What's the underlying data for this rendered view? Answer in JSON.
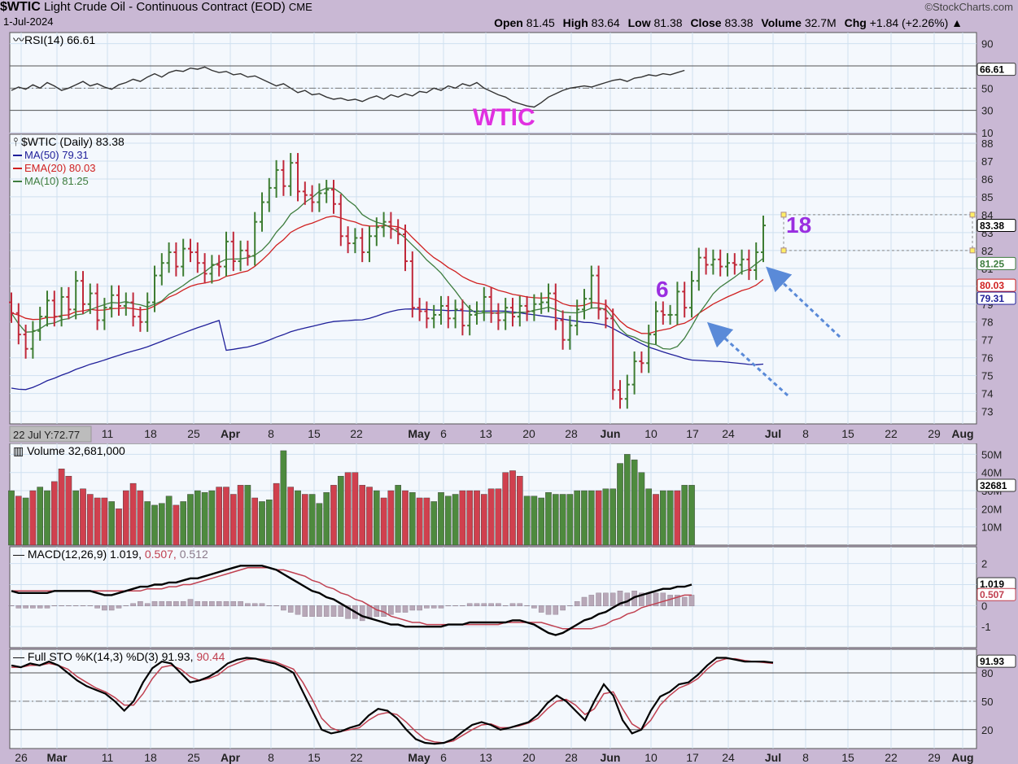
{
  "header": {
    "symbol": "$WTIC",
    "name": "Light Crude Oil - Continuous Contract (EOD)",
    "exchange": "CME",
    "date": "1-Jul-2024",
    "brand": "©StockCharts.com",
    "ohlc_line": [
      {
        "label": "Open",
        "value": "81.45"
      },
      {
        "label": "High",
        "value": "83.64"
      },
      {
        "label": "Low",
        "value": "81.38"
      },
      {
        "label": "Close",
        "value": "83.38"
      },
      {
        "label": "Volume",
        "value": "32.7M"
      },
      {
        "label": "Chg",
        "value": "+1.84 (+2.26%) ▲"
      }
    ]
  },
  "x_axis": {
    "labels": [
      "26",
      "Mar",
      "11",
      "18",
      "25",
      "Apr",
      "8",
      "15",
      "22",
      "May",
      "6",
      "13",
      "20",
      "28",
      "Jun",
      "10",
      "17",
      "24",
      "Jul",
      "8",
      "15",
      "22",
      "29",
      "Aug"
    ],
    "bold": [
      "Mar",
      "Apr",
      "May",
      "Jun",
      "Jul",
      "Aug"
    ],
    "cursor_label": "22 Jul Y:72.77"
  },
  "colors": {
    "up": "#3e7d32",
    "down": "#c0283a",
    "ma50": "#20209a",
    "ema20": "#d02020",
    "ma10": "#3e7d3e",
    "panel_bg": "#f4f8fd",
    "grid": "#cfe0f0",
    "annotation": "#9a2ee0",
    "wtic_label": "#e030e0",
    "arrow": "#5a8ad8"
  },
  "chart_data": [
    {
      "type": "line",
      "panel": "rsi",
      "title": "RSI(14) 66.61",
      "ylim": [
        10,
        100
      ],
      "ticks": [
        90,
        70,
        50,
        30,
        10
      ],
      "levels": [
        70,
        30
      ],
      "midline": 50,
      "last_value": "66.61",
      "values": [
        48,
        51,
        49,
        53,
        50,
        55,
        52,
        48,
        50,
        53,
        56,
        52,
        54,
        51,
        49,
        53,
        55,
        58,
        56,
        60,
        63,
        60,
        64,
        66,
        65,
        68,
        67,
        69,
        66,
        64,
        65,
        62,
        63,
        60,
        61,
        58,
        55,
        52,
        54,
        50,
        46,
        48,
        44,
        45,
        42,
        40,
        41,
        39,
        40,
        38,
        41,
        43,
        40,
        44,
        42,
        45,
        43,
        47,
        46,
        50,
        48,
        52,
        50,
        54,
        52,
        55,
        50,
        47,
        44,
        42,
        38,
        36,
        34,
        33,
        37,
        42,
        45,
        48,
        50,
        51,
        52,
        51,
        53,
        55,
        57,
        58,
        56,
        59,
        60,
        62,
        61,
        63,
        62,
        64,
        66
      ]
    },
    {
      "type": "ohlc",
      "panel": "price",
      "title": "$WTIC (Daily) 83.38",
      "ylim": [
        72.3,
        88.5
      ],
      "ticks": [
        88,
        87,
        86,
        85,
        84,
        83,
        82,
        81,
        80,
        79,
        78,
        77,
        76,
        75,
        74,
        73
      ],
      "close": [
        78.5,
        77.3,
        76.5,
        77.5,
        78.3,
        79.2,
        78.3,
        79.4,
        78.7,
        80.3,
        79.0,
        79.6,
        78.1,
        78.8,
        79.5,
        78.9,
        79.1,
        78.3,
        78.0,
        79.1,
        80.6,
        81.3,
        81.9,
        81.1,
        82.1,
        81.9,
        81.3,
        80.7,
        81.2,
        81.1,
        82.5,
        81.4,
        82.0,
        81.7,
        83.6,
        84.7,
        85.5,
        86.5,
        85.6,
        86.9,
        85.3,
        85.1,
        84.7,
        85.2,
        85.4,
        84.6,
        82.8,
        82.4,
        82.7,
        81.9,
        82.8,
        83.3,
        83.6,
        83.2,
        82.9,
        81.4,
        78.8,
        78.6,
        78.2,
        78.4,
        78.9,
        78.2,
        78.7,
        77.8,
        78.4,
        78.6,
        79.4,
        78.5,
        78.1,
        78.8,
        78.3,
        78.9,
        78.6,
        79.0,
        79.1,
        79.6,
        78.1,
        77.0,
        77.8,
        78.7,
        79.3,
        80.6,
        78.7,
        78.2,
        74.2,
        73.7,
        74.5,
        75.8,
        75.7,
        77.3,
        78.6,
        78.4,
        78.4,
        79.7,
        78.8,
        80.3,
        81.6,
        81.2,
        81.5,
        81.1,
        81.3,
        81.2,
        81.5,
        80.9,
        81.9,
        83.4
      ]
    },
    {
      "type": "bar",
      "panel": "volume",
      "title": "Volume 32,681,000",
      "ylim": [
        0,
        56
      ],
      "ticks": [
        50,
        40,
        30,
        20,
        10
      ],
      "last_value": "32681",
      "values": [
        30,
        27,
        26,
        30,
        32,
        30,
        35,
        42,
        38,
        30,
        31,
        28,
        26,
        26,
        24,
        20,
        30,
        34,
        30,
        24,
        22,
        23,
        27,
        22,
        24,
        28,
        30,
        29,
        30,
        32,
        32,
        28,
        33,
        33,
        26,
        24,
        25,
        34,
        52,
        32,
        30,
        28,
        28,
        23,
        29,
        33,
        38,
        40,
        40,
        33,
        32,
        30,
        26,
        30,
        33,
        30,
        29,
        26,
        26,
        24,
        29,
        27,
        28,
        30,
        30,
        30,
        28,
        31,
        31,
        40,
        41,
        38,
        27,
        27,
        26,
        29,
        28,
        28,
        28,
        30,
        30,
        30,
        30,
        31,
        31,
        45,
        50,
        47,
        40,
        31,
        28,
        30,
        30,
        30,
        33,
        33
      ],
      "up": [
        1,
        0,
        1,
        0,
        1,
        1,
        0,
        0,
        0,
        1,
        0,
        0,
        0,
        0,
        1,
        0,
        0,
        0,
        0,
        1,
        1,
        1,
        1,
        0,
        1,
        1,
        1,
        1,
        1,
        0,
        0,
        0,
        0,
        1,
        0,
        1,
        1,
        0,
        1,
        0,
        1,
        0,
        1,
        1,
        1,
        0,
        1,
        0,
        0,
        0,
        0,
        1,
        0,
        0,
        1,
        0,
        1,
        0,
        0,
        1,
        1,
        1,
        1,
        0,
        0,
        0,
        0,
        0,
        0,
        0,
        0,
        0,
        1,
        1,
        1,
        1,
        1,
        1,
        1,
        1,
        1,
        1,
        0,
        1,
        1,
        1,
        1,
        1,
        1,
        1,
        0,
        1,
        1,
        0,
        1,
        1
      ]
    },
    {
      "type": "line",
      "panel": "macd",
      "title": "MACD(12,26,9)",
      "macd_value": "1.019",
      "signal_value": "0.507",
      "hist_value": "0.512",
      "ylim": [
        -2.0,
        2.8
      ],
      "ticks": [
        2,
        1,
        0,
        -1
      ],
      "macd": [
        0.7,
        0.6,
        0.6,
        0.6,
        0.6,
        0.6,
        0.7,
        0.7,
        0.7,
        0.7,
        0.7,
        0.7,
        0.6,
        0.5,
        0.5,
        0.6,
        0.7,
        0.8,
        0.9,
        0.9,
        1.0,
        1.0,
        1.1,
        1.1,
        1.2,
        1.3,
        1.3,
        1.4,
        1.5,
        1.6,
        1.7,
        1.8,
        1.9,
        1.9,
        1.9,
        1.9,
        1.8,
        1.7,
        1.5,
        1.3,
        1.1,
        0.9,
        0.7,
        0.6,
        0.4,
        0.3,
        0.1,
        -0.1,
        -0.3,
        -0.5,
        -0.6,
        -0.7,
        -0.8,
        -0.9,
        -0.9,
        -1.0,
        -1.0,
        -1.0,
        -1.0,
        -1.0,
        -1.0,
        -0.9,
        -0.9,
        -0.9,
        -0.8,
        -0.8,
        -0.8,
        -0.8,
        -0.8,
        -0.8,
        -0.7,
        -0.7,
        -0.8,
        -0.9,
        -1.1,
        -1.3,
        -1.4,
        -1.3,
        -1.1,
        -0.9,
        -0.7,
        -0.6,
        -0.4,
        -0.3,
        -0.1,
        0.1,
        0.2,
        0.4,
        0.5,
        0.6,
        0.7,
        0.8,
        0.8,
        0.9,
        0.9,
        1.0
      ],
      "signal": [
        0.7,
        0.7,
        0.7,
        0.7,
        0.7,
        0.7,
        0.7,
        0.7,
        0.7,
        0.7,
        0.7,
        0.7,
        0.7,
        0.7,
        0.7,
        0.7,
        0.7,
        0.7,
        0.7,
        0.8,
        0.8,
        0.8,
        0.9,
        0.9,
        1.0,
        1.0,
        1.1,
        1.2,
        1.3,
        1.4,
        1.5,
        1.6,
        1.7,
        1.8,
        1.8,
        1.8,
        1.8,
        1.7,
        1.7,
        1.6,
        1.5,
        1.4,
        1.2,
        1.1,
        0.9,
        0.8,
        0.6,
        0.5,
        0.3,
        0.2,
        0.0,
        -0.2,
        -0.3,
        -0.5,
        -0.6,
        -0.7,
        -0.8,
        -0.8,
        -0.9,
        -0.9,
        -0.9,
        -0.9,
        -0.9,
        -0.9,
        -0.9,
        -0.9,
        -0.9,
        -0.9,
        -0.9,
        -0.8,
        -0.8,
        -0.8,
        -0.8,
        -0.8,
        -0.8,
        -0.9,
        -1.0,
        -1.1,
        -1.1,
        -1.1,
        -1.1,
        -1.1,
        -1.0,
        -0.9,
        -0.7,
        -0.6,
        -0.4,
        -0.3,
        -0.1,
        0.0,
        0.1,
        0.2,
        0.3,
        0.4,
        0.5,
        0.5
      ]
    },
    {
      "type": "line",
      "panel": "sto",
      "title": "Full STO %K(14,3) %D(3)",
      "k_value": "91.93",
      "d_value": "90.44",
      "ylim": [
        0,
        105
      ],
      "ticks": [
        80,
        50,
        20
      ],
      "levels": [
        80,
        20
      ],
      "midline": 50,
      "k": [
        88,
        86,
        90,
        88,
        92,
        88,
        80,
        72,
        66,
        62,
        58,
        50,
        40,
        50,
        70,
        85,
        92,
        90,
        80,
        70,
        72,
        76,
        82,
        90,
        94,
        96,
        95,
        92,
        90,
        86,
        80,
        60,
        40,
        20,
        16,
        18,
        22,
        25,
        35,
        42,
        40,
        32,
        20,
        10,
        6,
        5,
        6,
        10,
        18,
        25,
        28,
        25,
        20,
        22,
        25,
        28,
        36,
        48,
        56,
        50,
        40,
        30,
        50,
        68,
        56,
        30,
        16,
        20,
        40,
        55,
        60,
        68,
        70,
        78,
        88,
        96,
        96,
        94,
        92,
        92,
        92,
        91
      ],
      "d": [
        86,
        86,
        88,
        88,
        90,
        88,
        84,
        76,
        70,
        64,
        60,
        54,
        46,
        46,
        58,
        74,
        86,
        88,
        84,
        76,
        72,
        74,
        78,
        86,
        90,
        94,
        95,
        94,
        92,
        88,
        84,
        70,
        52,
        32,
        22,
        18,
        20,
        22,
        30,
        36,
        38,
        36,
        28,
        18,
        10,
        7,
        6,
        8,
        14,
        20,
        25,
        26,
        22,
        22,
        24,
        27,
        32,
        42,
        50,
        52,
        46,
        36,
        42,
        58,
        60,
        42,
        26,
        20,
        30,
        46,
        56,
        64,
        68,
        74,
        84,
        92,
        95,
        95,
        93,
        92,
        91,
        90
      ]
    }
  ],
  "legend_price": [
    {
      "label": "MA(50) 79.31",
      "color": "#20209a"
    },
    {
      "label": "EMA(20) 80.03",
      "color": "#d02020"
    },
    {
      "label": "MA(10) 81.25",
      "color": "#3e7d3e"
    }
  ],
  "price_badges": [
    "83.38",
    "81.25",
    "80.03",
    "79.31"
  ],
  "annotations": {
    "wtic": "WTIC",
    "six": "6",
    "eighteen": "18"
  }
}
